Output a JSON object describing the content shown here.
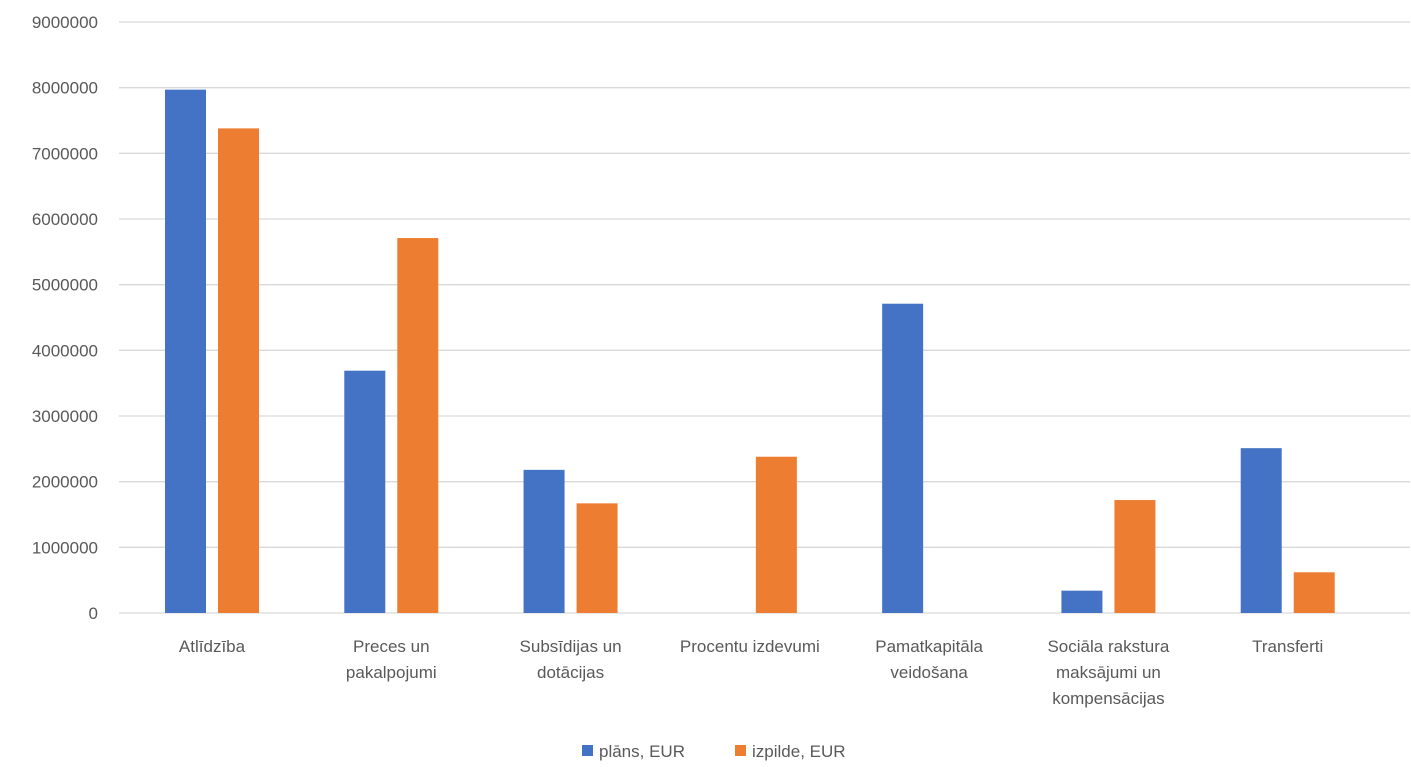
{
  "chart_data": {
    "type": "bar",
    "title": "",
    "xlabel": "",
    "ylabel": "",
    "categories": [
      [
        "Atlīdzība"
      ],
      [
        "Preces un",
        "pakalpojumi"
      ],
      [
        "Subsīdijas un",
        "dotācijas"
      ],
      [
        "Procentu izdevumi"
      ],
      [
        "Pamatkapitāla",
        "veidošana"
      ],
      [
        "Sociāla rakstura",
        "maksājumi un",
        "kompensācijas"
      ],
      [
        "Transferti"
      ]
    ],
    "series": [
      {
        "name": "plāns, EUR",
        "color": "#4472C4",
        "values": [
          7970000,
          3690000,
          2180000,
          0,
          4710000,
          340000,
          2510000
        ]
      },
      {
        "name": "izpilde, EUR",
        "color": "#ED7D31",
        "values": [
          7380000,
          5710000,
          1670000,
          2380000,
          0,
          1720000,
          620000
        ]
      }
    ],
    "ylim": [
      0,
      9000000
    ],
    "yticks": [
      "0",
      "1000000",
      "2000000",
      "3000000",
      "4000000",
      "5000000",
      "6000000",
      "7000000",
      "8000000",
      "9000000"
    ],
    "grid": true,
    "legend_position": "bottom-center"
  }
}
